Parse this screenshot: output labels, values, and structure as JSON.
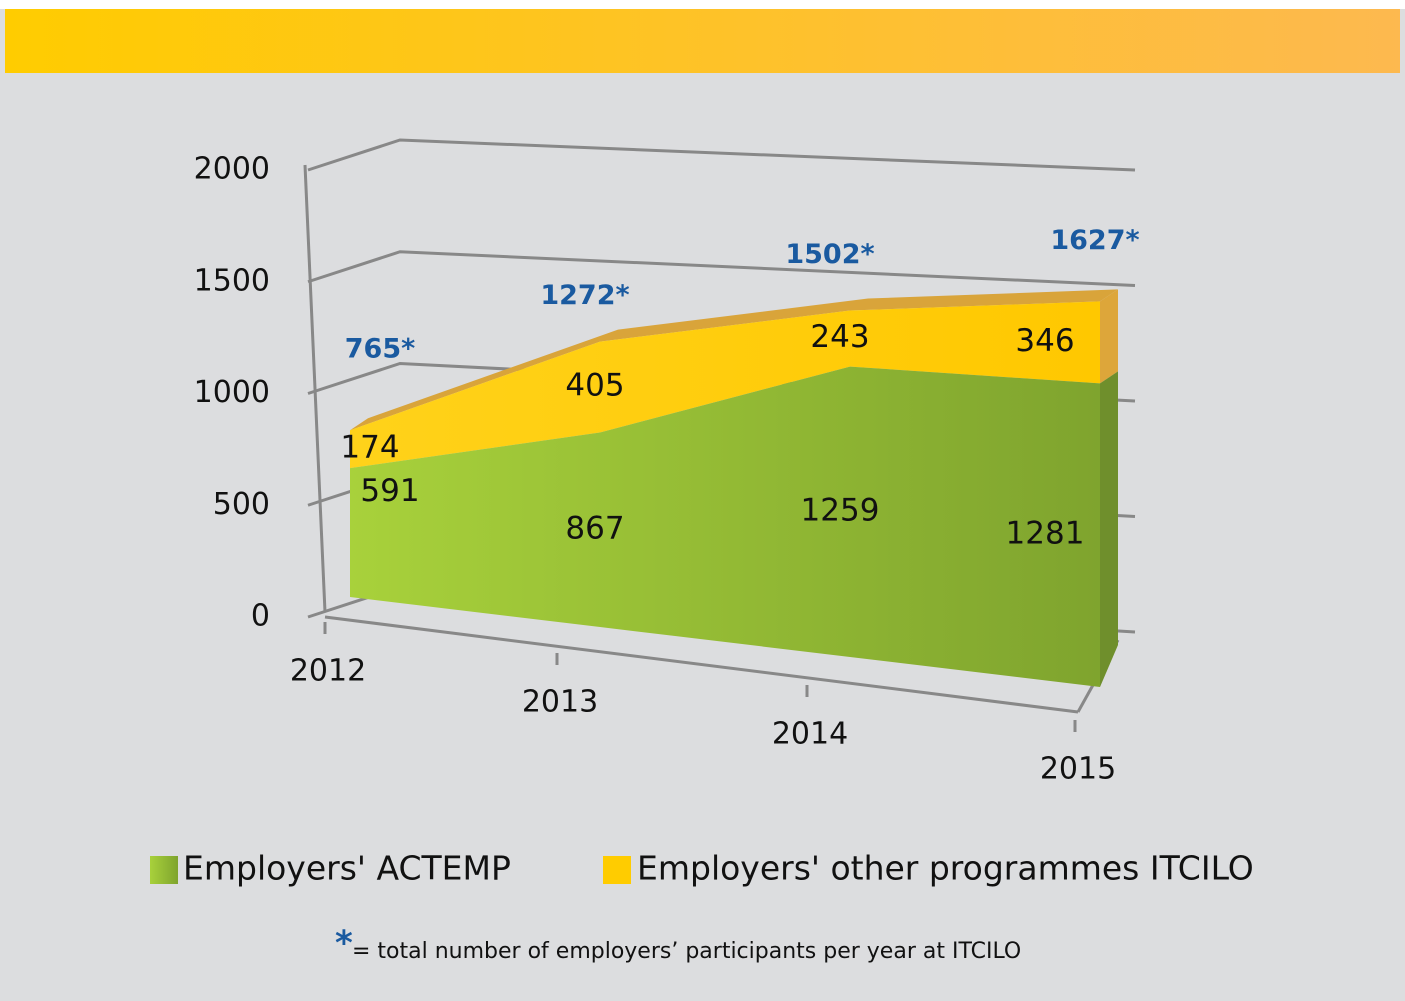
{
  "chart_data": {
    "type": "area3d",
    "categories": [
      "2012",
      "2013",
      "2014",
      "2015"
    ],
    "series": [
      {
        "name": "Employers' ACTEMP",
        "color": "#8fba32",
        "values": [
          591,
          867,
          1259,
          1281
        ]
      },
      {
        "name": "Employers' other programmes ITCILO",
        "color": "#ffcc00",
        "values": [
          174,
          405,
          243,
          346
        ]
      }
    ],
    "totals": {
      "values": [
        765,
        1272,
        1502,
        1627
      ],
      "value_labels": [
        "765*",
        "1272*",
        "1502*",
        "1627*"
      ]
    },
    "ylim": [
      0,
      2000
    ],
    "yticks": [
      0,
      500,
      1000,
      1500,
      2000
    ],
    "grid": true,
    "footnote_marker": "*",
    "footnote": "= total number of employers’ participants per year at ITCILO"
  }
}
